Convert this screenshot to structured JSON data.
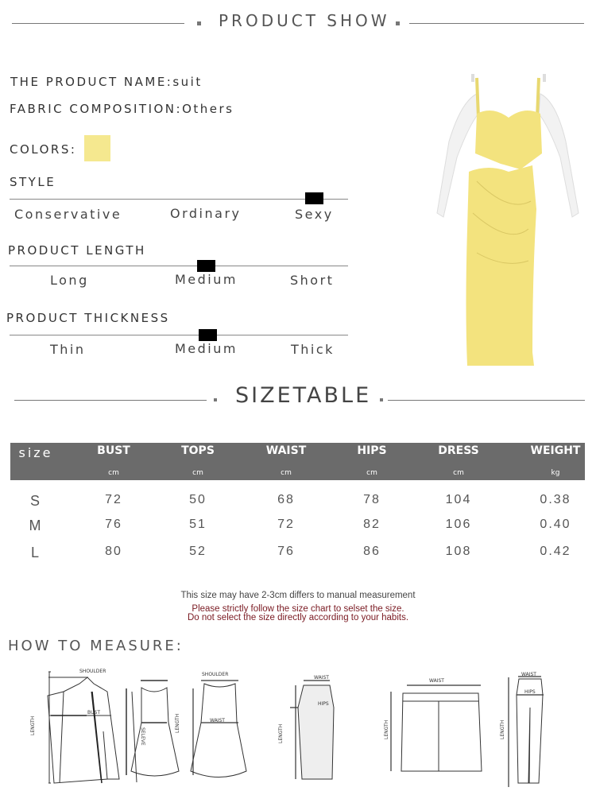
{
  "product_show": {
    "title": "PRODUCT SHOW"
  },
  "info": {
    "name_label": "THE PRODUCT NAME:",
    "name_value": "suit",
    "fabric_label": "FABRIC COMPOSITION:",
    "fabric_value": "Others",
    "colors_label": "COLORS:",
    "color_swatch": "#f5e88f"
  },
  "scales": [
    {
      "title": "STYLE",
      "options": [
        "Conservative",
        "Ordinary",
        "Sexy"
      ],
      "selected": "Sexy"
    },
    {
      "title": "PRODUCT LENGTH",
      "options": [
        "Long",
        "Medium",
        "Short"
      ],
      "selected": "Medium"
    },
    {
      "title": "PRODUCT THICKNESS",
      "options": [
        "Thin",
        "Medium",
        "Thick"
      ],
      "selected": "Medium"
    }
  ],
  "sizetable": {
    "title": "SIZETABLE",
    "header_color": "#6b6b6b",
    "columns": [
      {
        "name": "size",
        "unit": ""
      },
      {
        "name": "BUST",
        "unit": "cm"
      },
      {
        "name": "TOPS",
        "unit": "cm"
      },
      {
        "name": "WAIST",
        "unit": "cm"
      },
      {
        "name": "HIPS",
        "unit": "cm"
      },
      {
        "name": "DRESS",
        "unit": "cm"
      },
      {
        "name": "WEIGHT",
        "unit": "kg"
      }
    ],
    "rows": [
      [
        "S",
        "72",
        "50",
        "68",
        "78",
        "104",
        "0.38"
      ],
      [
        "M",
        "76",
        "51",
        "72",
        "82",
        "106",
        "0.40"
      ],
      [
        "L",
        "80",
        "52",
        "76",
        "86",
        "108",
        "0.42"
      ]
    ]
  },
  "notes": {
    "line1": "This size may have 2-3cm differs to manual measurement",
    "line2": "Please strictly follow the size chart to selset the size.",
    "line3": "Do not select the size directly according to your habits.",
    "warning_color": "#7a1a22"
  },
  "measure": {
    "title": "HOW TO MEASURE:",
    "labels": {
      "shoulder": "SHOULDER",
      "bust": "BUST",
      "length": "LENGTH",
      "sleeve": "SELEVE",
      "waist": "WAIST",
      "hips": "HIPS"
    }
  }
}
